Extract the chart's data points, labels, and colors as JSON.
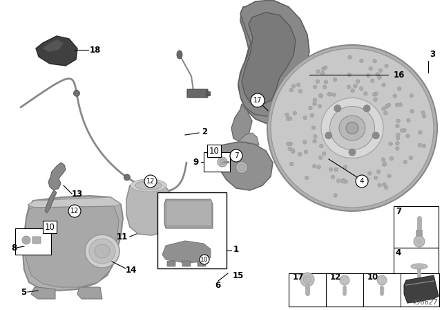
{
  "bg_color": "#ffffff",
  "diagram_id": "496627",
  "lc": "#000000",
  "fc_mid": "#a8a8a8",
  "fc_dark": "#787878",
  "fc_light": "#d0d0d0",
  "fc_vlight": "#e0e0e0",
  "fc_black": "#2a2a2a",
  "label_fs": 8.5,
  "bold_fs": 9.5
}
